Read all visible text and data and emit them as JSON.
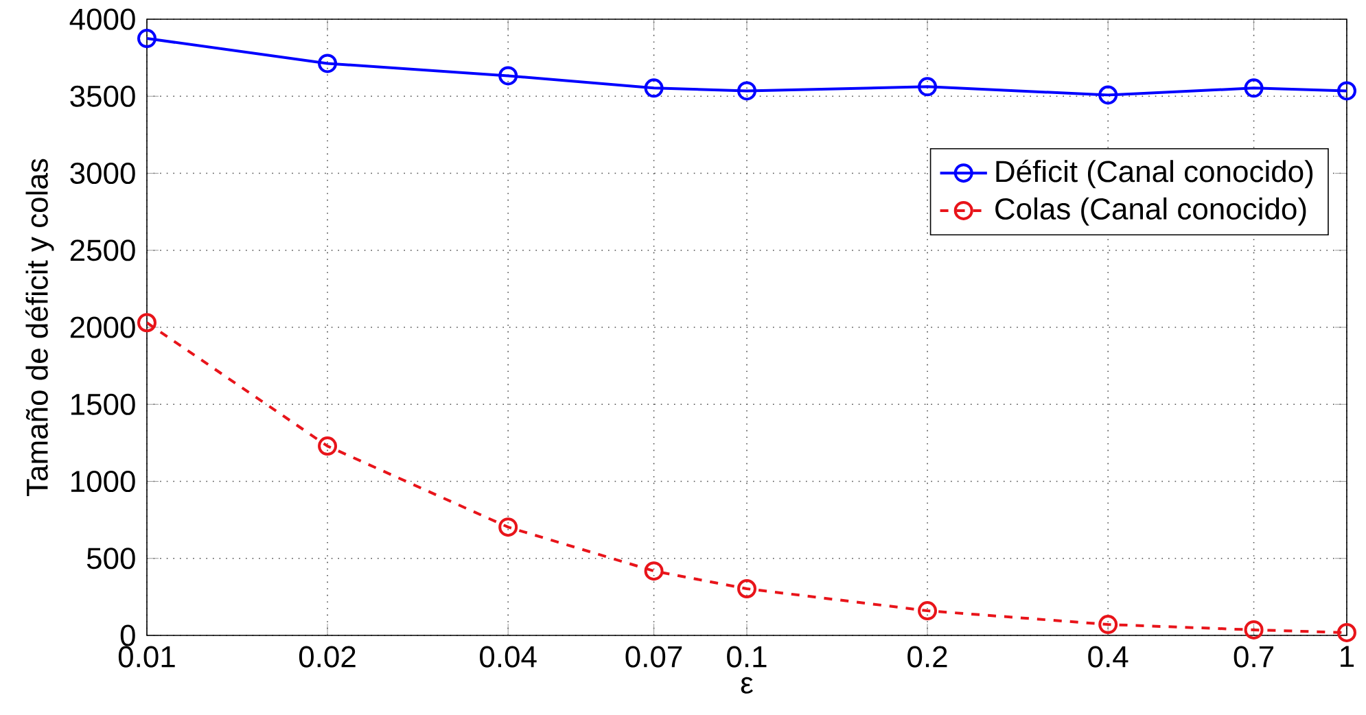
{
  "chart_data": {
    "type": "line",
    "xlabel": "ε",
    "ylabel": "Tamaño de déficit y colas",
    "log": "x",
    "x": [
      0.01,
      0.02,
      0.04,
      0.07,
      0.1,
      0.2,
      0.4,
      0.7,
      1
    ],
    "xlim": [
      0.01,
      1
    ],
    "xticks": [
      0.01,
      0.02,
      0.04,
      0.07,
      0.1,
      0.2,
      0.4,
      0.7,
      1
    ],
    "ylim": [
      0,
      4000
    ],
    "yticks": [
      0,
      500,
      1000,
      1500,
      2000,
      2500,
      3000,
      3500,
      4000
    ],
    "grid": true,
    "legend": "right",
    "marker": "circle",
    "series": [
      {
        "name": "Déficit (Canal conocido)",
        "color": "#0000ff",
        "line_style": "solid",
        "values": [
          3875,
          3713,
          3633,
          3553,
          3535,
          3562,
          3508,
          3553,
          3535
        ]
      },
      {
        "name": "Colas (Canal conocido)",
        "color": "#e8141a",
        "line_style": "dashed",
        "values": [
          2030,
          1229,
          703,
          418,
          303,
          160,
          71,
          36,
          18
        ]
      }
    ]
  }
}
